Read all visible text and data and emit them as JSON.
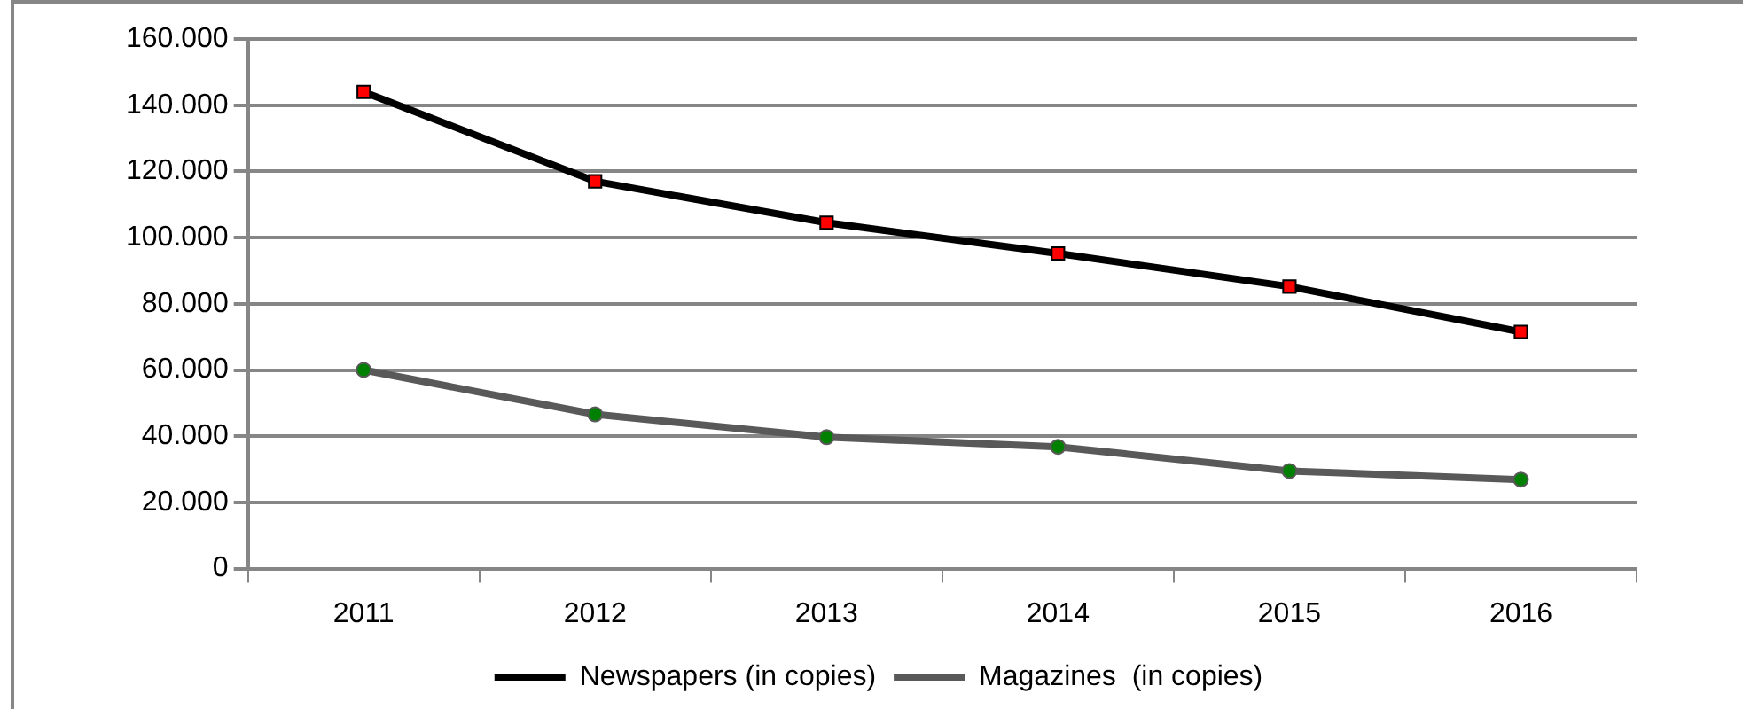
{
  "chart_data": {
    "type": "line",
    "categories": [
      "2011",
      "2012",
      "2013",
      "2014",
      "2015",
      "2016"
    ],
    "series": [
      {
        "name": "Newspapers (in copies)",
        "color": "#000000",
        "marker": "square",
        "values": [
          144000,
          117000,
          104500,
          95200,
          85200,
          71500
        ]
      },
      {
        "name": "Magazines  (in copies)",
        "color": "#595959",
        "marker": "circle",
        "values": [
          60000,
          46600,
          39700,
          36800,
          29500,
          26900
        ]
      }
    ],
    "ylim": [
      0,
      160000
    ],
    "yticks": [
      0,
      {
        "value": 20000,
        "label": "20.000"
      },
      {
        "value": 40000,
        "label": "40.000"
      },
      {
        "value": 60000,
        "label": "60.000"
      },
      {
        "value": 80000,
        "label": "80.000"
      },
      {
        "value": 100000,
        "label": "100.000"
      },
      {
        "value": 120000,
        "label": "120.000"
      },
      {
        "value": 140000,
        "label": "140.000"
      },
      {
        "value": 160000,
        "label": "160.000"
      }
    ],
    "grid": "y",
    "legend": "bottom"
  }
}
